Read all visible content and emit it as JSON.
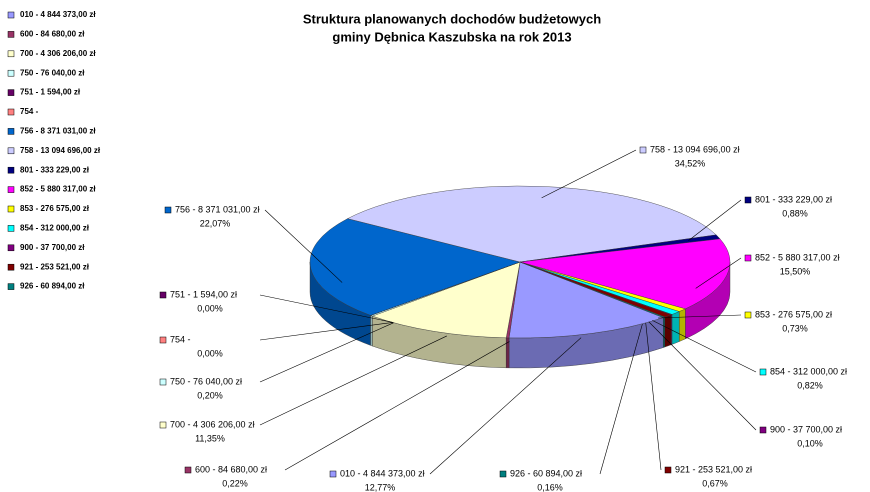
{
  "chart_data": {
    "type": "pie",
    "title": [
      "Struktura planowanych dochodów budżetowych",
      "gminy Dębnica Kaszubska na rok 2013"
    ],
    "categories": [
      "010 - 4 844 373,00 zł",
      "600 - 84 680,00 zł",
      "700 - 4 306 206,00 zł",
      "750 - 76 040,00 zł",
      "751 - 1 594,00 zł",
      "754 -",
      "756 - 8 371 031,00 zł",
      "758 - 13 094 696,00 zł",
      "801 - 333 229,00 zł",
      "852 - 5 880 317,00 zł",
      "853 - 276 575,00 zł",
      "854 - 312 000,00 zł",
      "900 - 37 700,00 zł",
      "921 - 253 521,00 zł",
      "926 - 60 894,00 zł"
    ],
    "values": [
      12.77,
      0.22,
      11.35,
      0.2,
      0.0,
      0.0,
      22.07,
      34.52,
      0.88,
      15.5,
      0.73,
      0.82,
      0.1,
      0.67,
      0.16
    ],
    "value_labels": [
      "12,77%",
      "0,22%",
      "11,35%",
      "0,20%",
      "0,00%",
      "0,00%",
      "22,07%",
      "34,52%",
      "0,88%",
      "15,50%",
      "0,73%",
      "0,82%",
      "0,10%",
      "0,67%",
      "0,16%"
    ],
    "colors": [
      "#9999ff",
      "#993366",
      "#ffffcc",
      "#ccffff",
      "#660066",
      "#ff8080",
      "#0066cc",
      "#ccccff",
      "#000080",
      "#ff00ff",
      "#ffff00",
      "#00ffff",
      "#800080",
      "#800000",
      "#008080"
    ],
    "legend": "left"
  }
}
